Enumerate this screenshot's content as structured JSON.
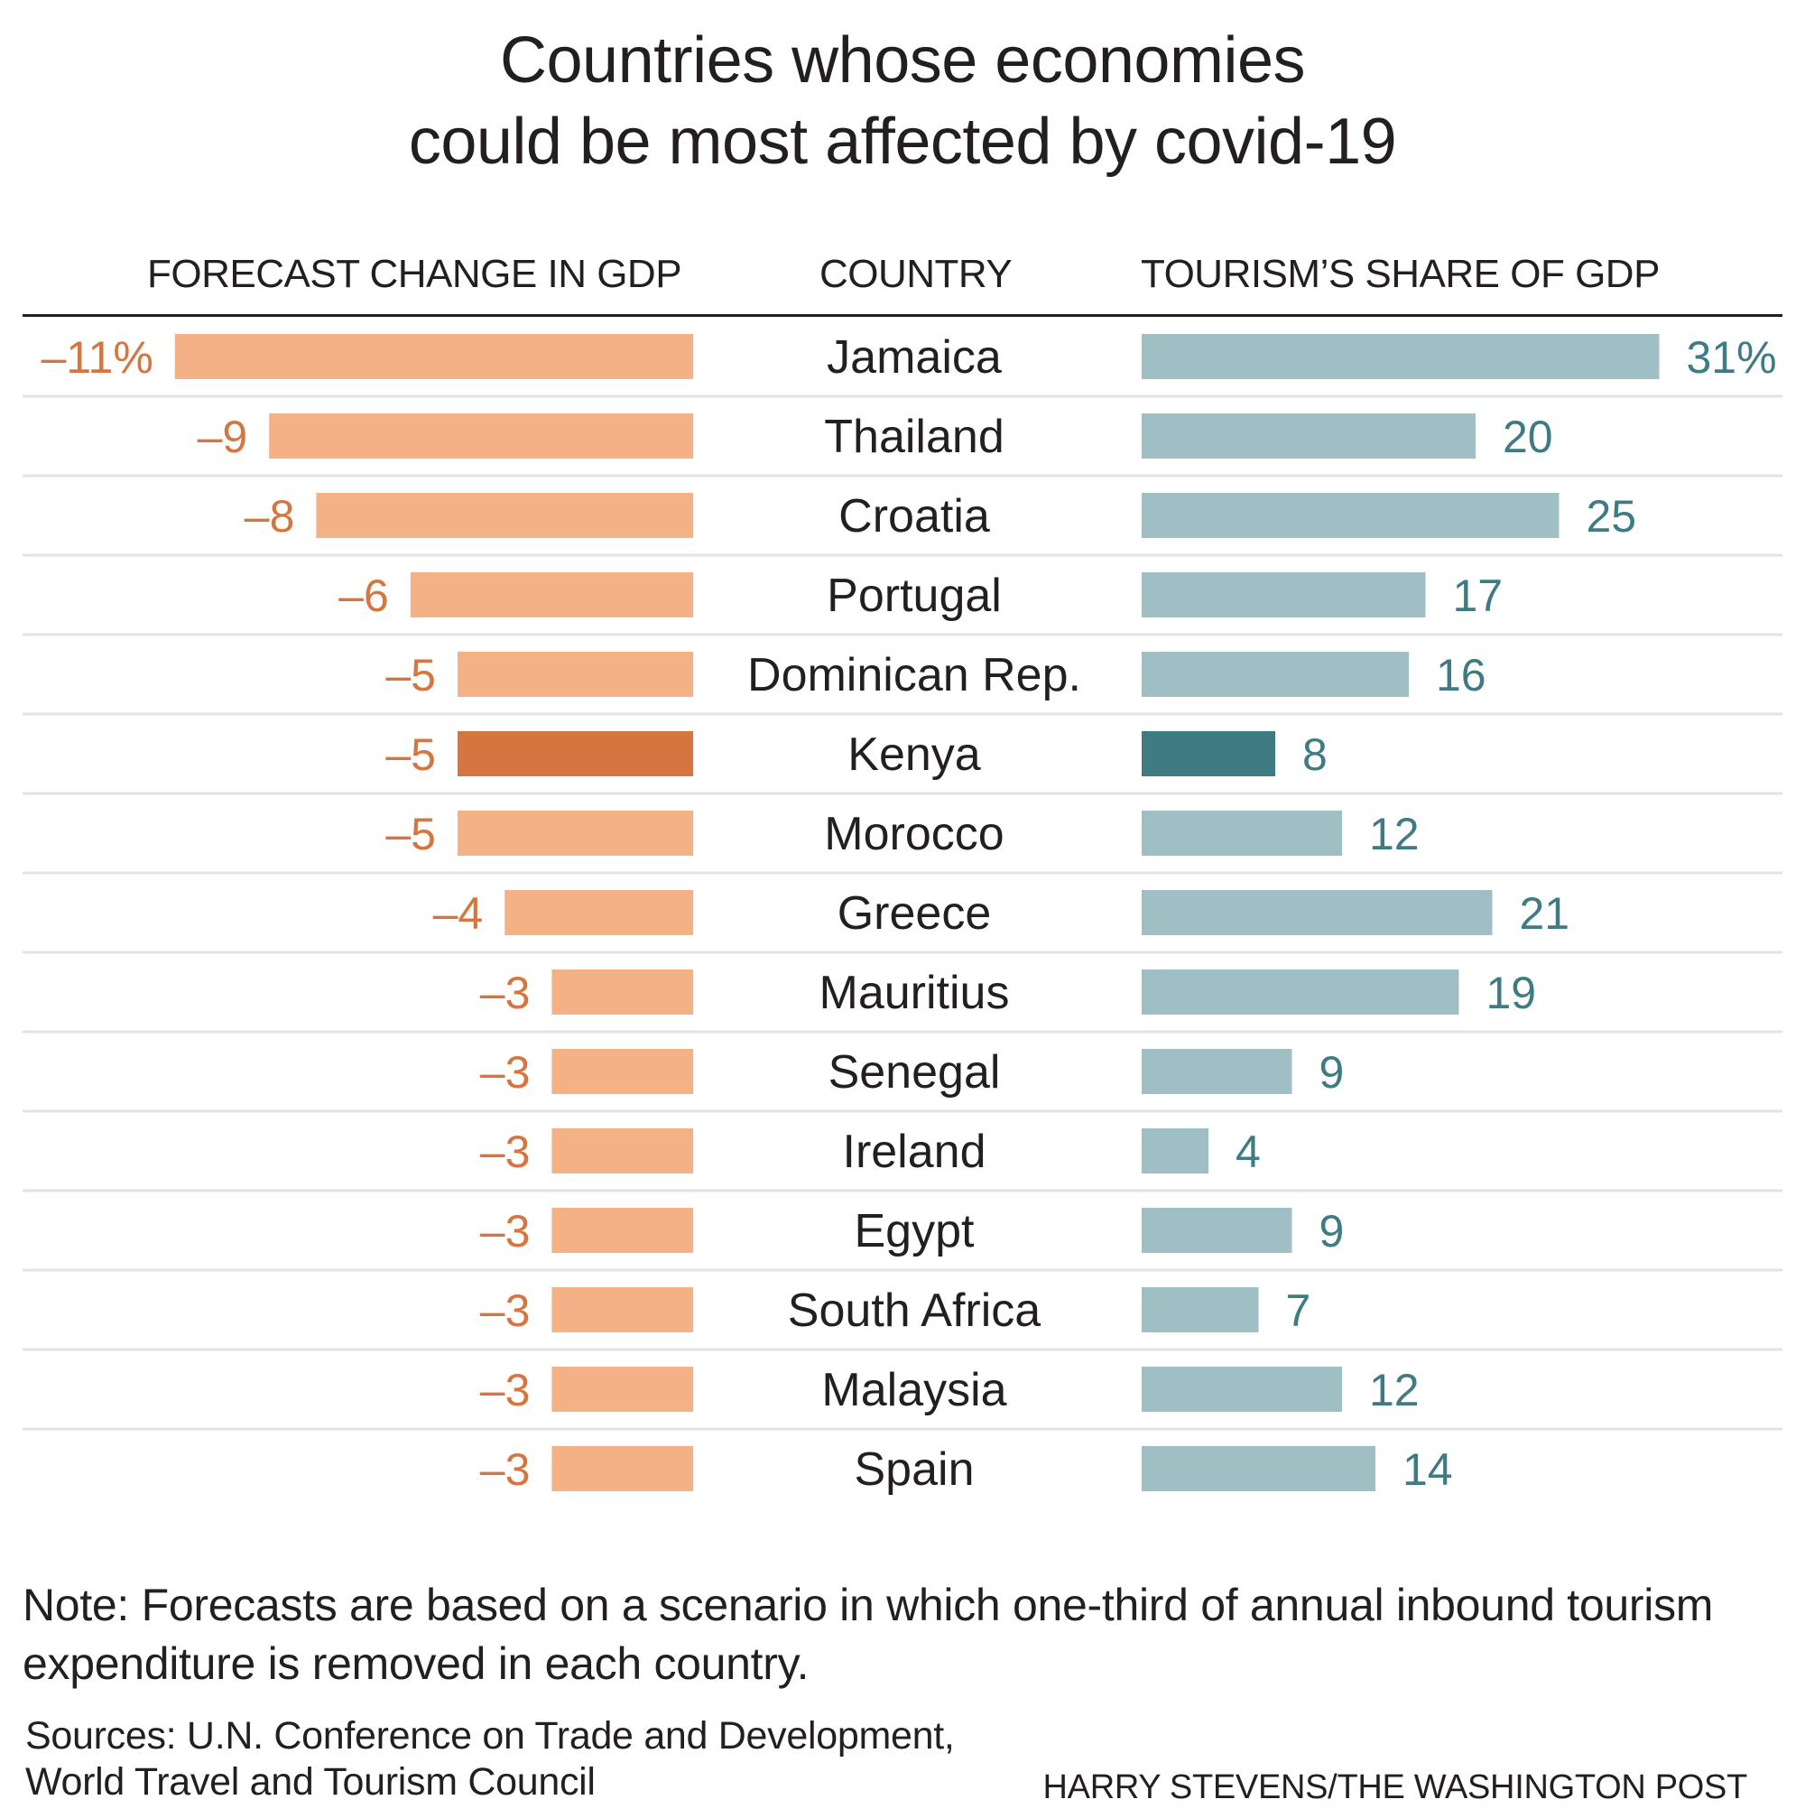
{
  "title_lines": [
    "Countries whose economies",
    "could be most affected by covid-19"
  ],
  "colors": {
    "gdp_bar": "#f5b186",
    "gdp_bar_highlight": "#d57641",
    "gdp_label": "#d57641",
    "tourism_bar": "#a0bfc5",
    "tourism_bar_highlight": "#3e7b82",
    "tourism_label": "#3e7b82",
    "row_rule": "#e3e3e3",
    "text": "#231f20"
  },
  "chart_data": {
    "type": "bar",
    "layout": "back-to-back horizontal bars",
    "categories": [
      "Jamaica",
      "Thailand",
      "Croatia",
      "Portugal",
      "Dominican Rep.",
      "Kenya",
      "Morocco",
      "Greece",
      "Mauritius",
      "Senegal",
      "Ireland",
      "Egypt",
      "South Africa",
      "Malaysia",
      "Spain"
    ],
    "highlight": "Kenya",
    "series": [
      {
        "name": "FORECAST CHANGE IN GDP",
        "unit": "%",
        "values": [
          -11,
          -9,
          -8,
          -6,
          -5,
          -5,
          -5,
          -4,
          -3,
          -3,
          -3,
          -3,
          -3,
          -3,
          -3
        ],
        "labels": [
          "–11%",
          "–9",
          "–8",
          "–6",
          "–5",
          "–5",
          "–5",
          "–4",
          "–3",
          "–3",
          "–3",
          "–3",
          "–3",
          "–3",
          "–3"
        ]
      },
      {
        "name": "TOURISM’S SHARE OF GDP",
        "unit": "%",
        "values": [
          31,
          20,
          25,
          17,
          16,
          8,
          12,
          21,
          19,
          9,
          4,
          9,
          7,
          12,
          14
        ],
        "labels": [
          "31%",
          "20",
          "25",
          "17",
          "16",
          "8",
          "12",
          "21",
          "19",
          "9",
          "4",
          "9",
          "7",
          "12",
          "14"
        ]
      }
    ],
    "column_headers": {
      "gdp": "FORECAST CHANGE IN GDP",
      "country": "COUNTRY",
      "tourism": "TOURISM’S SHARE OF GDP"
    }
  },
  "note": "Note: Forecasts are based on a scenario in which one-third of annual inbound tourism expenditure is removed in each country.",
  "sources_lines": [
    "Sources: U.N. Conference on Trade and Development,",
    "World Travel and Tourism Council"
  ],
  "credit": "HARRY STEVENS/THE WASHINGTON POST"
}
